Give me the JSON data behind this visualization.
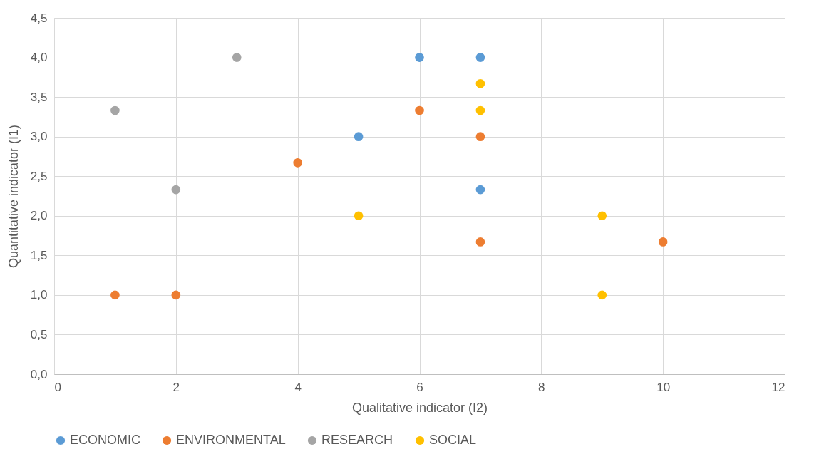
{
  "chart_data": {
    "type": "scatter",
    "xlabel": "Qualitative indicator (I2)",
    "ylabel": "Quantitative indicator (I1)",
    "xlim": [
      0,
      12
    ],
    "xticks": [
      0,
      2,
      4,
      6,
      8,
      10,
      12
    ],
    "ylim": [
      0,
      4.5
    ],
    "yticks": [
      {
        "value": 0,
        "label": "0,0"
      },
      {
        "value": 0.5,
        "label": "0,5"
      },
      {
        "value": 1,
        "label": "1,0"
      },
      {
        "value": 1.5,
        "label": "1,5"
      },
      {
        "value": 2,
        "label": "2,0"
      },
      {
        "value": 2.5,
        "label": "2,5"
      },
      {
        "value": 3,
        "label": "3,0"
      },
      {
        "value": 3.5,
        "label": "3,5"
      },
      {
        "value": 4,
        "label": "4,0"
      },
      {
        "value": 4.5,
        "label": "4,5"
      }
    ],
    "grid": true,
    "legend": "bottom",
    "marker": "circle",
    "series": [
      {
        "name": "ECONOMIC",
        "color": "#5b9bd5",
        "x": [
          6,
          7,
          5,
          7
        ],
        "values": [
          4,
          4,
          3,
          2.33
        ]
      },
      {
        "name": "ENVIRONMENTAL",
        "color": "#ed7d31",
        "x": [
          6,
          7,
          4,
          7,
          10,
          1,
          2
        ],
        "values": [
          3.33,
          3,
          2.67,
          1.67,
          1.67,
          1,
          1
        ]
      },
      {
        "name": "RESEARCH",
        "color": "#a5a5a5",
        "x": [
          3,
          1,
          2
        ],
        "values": [
          4,
          3.33,
          2.33
        ]
      },
      {
        "name": "SOCIAL",
        "color": "#ffc000",
        "x": [
          7,
          7,
          5,
          9,
          9
        ],
        "values": [
          3.67,
          3.33,
          2,
          2,
          1
        ]
      }
    ]
  }
}
